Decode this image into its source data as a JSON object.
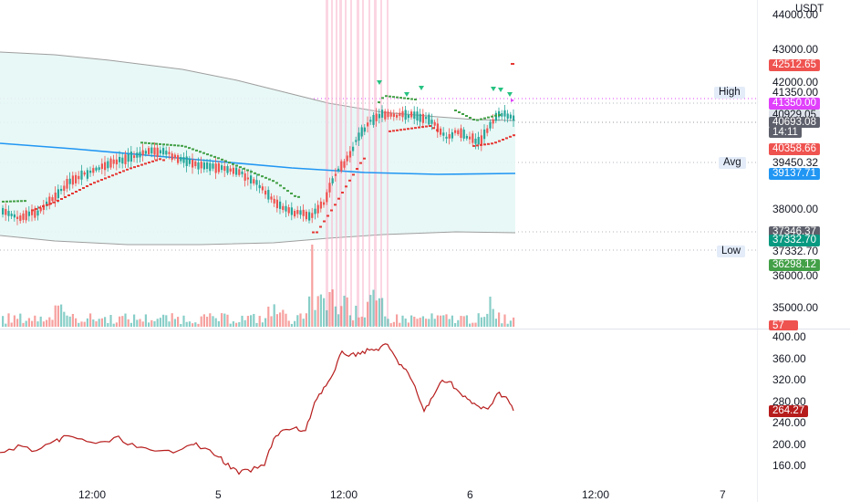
{
  "currency": "USDT",
  "price_axis": [
    "44000.00",
    "43000.00",
    "42000.00",
    "38000.00",
    "36000.00",
    "35000.00"
  ],
  "price_labels": [
    {
      "text": "42512.65",
      "bg": "#ef5350",
      "color": "#ffffff"
    },
    {
      "text": "41350.00",
      "bg": "#e040fb",
      "color": "#ffffff"
    },
    {
      "text": "40929.05",
      "bg": "#dfe3eb",
      "color": "#131722"
    },
    {
      "text": "40693.08",
      "bg": "#5d606b",
      "color": "#ffffff"
    },
    {
      "text": "14:11",
      "bg": "#5d606b",
      "color": "#ffffff"
    },
    {
      "text": "40358.66",
      "bg": "#ef5350",
      "color": "#ffffff"
    },
    {
      "text": "39137.71",
      "bg": "#2196f3",
      "color": "#ffffff"
    },
    {
      "text": "37346.37",
      "bg": "#5d606b",
      "color": "#ffffff"
    },
    {
      "text": "37332.70",
      "bg": "#089981",
      "color": "#ffffff"
    },
    {
      "text": "36298.12",
      "bg": "#43a047",
      "color": "#ffffff"
    },
    {
      "text": "57",
      "bg": "#ef5350",
      "color": "#ffffff"
    }
  ],
  "high": {
    "label": "High",
    "value": "41350.00"
  },
  "avg": {
    "label": "Avg",
    "value": "39450.32"
  },
  "low": {
    "label": "Low",
    "value": "37332.70"
  },
  "indicator_axis": [
    "400.00",
    "360.00",
    "320.00",
    "280.00",
    "240.00",
    "200.00",
    "160.00"
  ],
  "indicator_label": {
    "text": "264.27",
    "bg": "#b71c1c",
    "color": "#ffffff"
  },
  "time_axis": [
    "12:00",
    "5",
    "12:00",
    "6",
    "12:00",
    "7"
  ],
  "colors": {
    "up": "#26a69a",
    "down": "#ef5350",
    "psar_up": "#43a047",
    "psar_down": "#e53935",
    "ma": "#2196f3",
    "band": "#9e9e9e",
    "band_fill": "#e6f7f5",
    "highlight": "#f8bbd0",
    "indicator": "#b71c1c"
  }
}
